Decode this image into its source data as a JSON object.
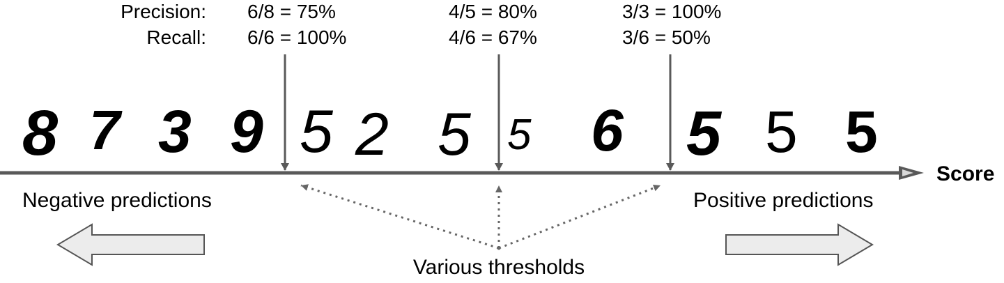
{
  "metrics": {
    "precision_label": "Precision:",
    "recall_label": "Recall:",
    "thresholds": [
      {
        "precision": "6/8 = 75%",
        "recall": "6/6 = 100%"
      },
      {
        "precision": "4/5 = 80%",
        "recall": "4/6 = 67%"
      },
      {
        "precision": "3/3 = 100%",
        "recall": "3/6 = 50%"
      }
    ]
  },
  "axis": {
    "label": "Score"
  },
  "digits": [
    "8",
    "7",
    "3",
    "9",
    "5",
    "2",
    "5",
    "5",
    "6",
    "5",
    "5",
    "5"
  ],
  "labels": {
    "negative": "Negative predictions",
    "positive": "Positive predictions",
    "various_thresholds": "Various thresholds"
  },
  "colors": {
    "axis": "#595959",
    "text": "#000000",
    "arrow_fill": "#ececec",
    "arrow_stroke": "#555555",
    "dotted": "#666666"
  }
}
